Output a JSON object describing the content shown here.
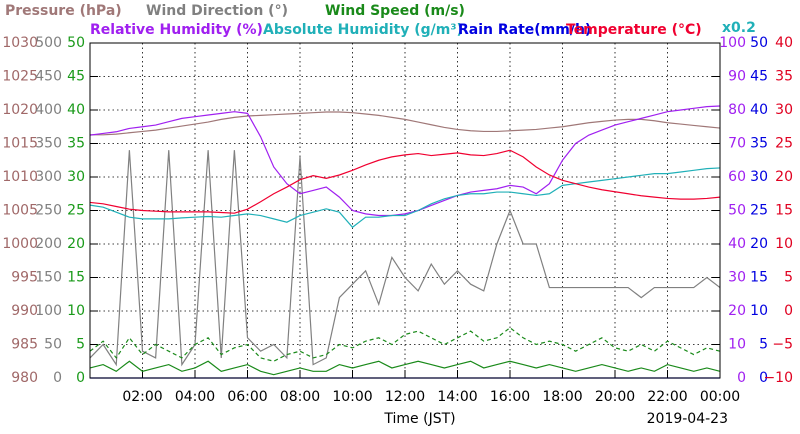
{
  "chart_data": {
    "type": "line",
    "x_label": "Time (JST)",
    "date": "2019-04-23",
    "annotation": "x0.2",
    "xlim": [
      0,
      24
    ],
    "xticks": [
      {
        "value": 2,
        "label": "02:00"
      },
      {
        "value": 4,
        "label": "04:00"
      },
      {
        "value": 6,
        "label": "06:00"
      },
      {
        "value": 8,
        "label": "08:00"
      },
      {
        "value": 10,
        "label": "10:00"
      },
      {
        "value": 12,
        "label": "12:00"
      },
      {
        "value": 14,
        "label": "14:00"
      },
      {
        "value": 16,
        "label": "16:00"
      },
      {
        "value": 18,
        "label": "18:00"
      },
      {
        "value": 20,
        "label": "20:00"
      },
      {
        "value": 22,
        "label": "22:00"
      },
      {
        "value": 24,
        "label": "00:00"
      }
    ],
    "grid": true,
    "y_axes": [
      {
        "side": "left",
        "color": "#a06868",
        "ylim": [
          980,
          1030
        ],
        "yticks": [
          980,
          985,
          990,
          995,
          1000,
          1005,
          1010,
          1015,
          1020,
          1025,
          1030
        ]
      },
      {
        "side": "left",
        "color": "#808080",
        "ylim": [
          0,
          500
        ],
        "yticks": [
          0,
          50,
          100,
          150,
          200,
          250,
          300,
          350,
          400,
          450,
          500
        ]
      },
      {
        "side": "left",
        "color": "#1a9a1a",
        "ylim": [
          0,
          50
        ],
        "yticks": [
          0,
          5,
          10,
          15,
          20,
          25,
          30,
          35,
          40,
          45,
          50
        ]
      },
      {
        "side": "right",
        "color": "#a020f0",
        "ylim": [
          0,
          100
        ],
        "yticks": [
          0,
          10,
          20,
          30,
          40,
          50,
          60,
          70,
          80,
          90,
          100
        ]
      },
      {
        "side": "right",
        "color": "#0000e0",
        "ylim": [
          0,
          50
        ],
        "yticks": [
          0,
          5,
          10,
          15,
          20,
          25,
          30,
          35,
          40,
          45,
          50
        ]
      },
      {
        "side": "right",
        "color": "#e00020",
        "ylim": [
          -10,
          40
        ],
        "yticks": [
          {
            "value": -10,
            "label": "−10"
          },
          {
            "value": -5,
            "label": "−5"
          },
          0,
          5,
          10,
          15,
          20,
          25,
          30,
          35,
          40
        ]
      }
    ],
    "x": [
      0,
      0.5,
      1,
      1.5,
      2,
      2.5,
      3,
      3.5,
      4,
      4.5,
      5,
      5.5,
      6,
      6.5,
      7,
      7.5,
      8,
      8.5,
      9,
      9.5,
      10,
      10.5,
      11,
      11.5,
      12,
      12.5,
      13,
      13.5,
      14,
      14.5,
      15,
      15.5,
      16,
      16.5,
      17,
      17.5,
      18,
      18.5,
      19,
      19.5,
      20,
      20.5,
      21,
      21.5,
      22,
      22.5,
      23,
      23.5,
      24
    ],
    "series": [
      {
        "name": "Pressure (hPa)",
        "color": "#a07878",
        "axis": 0,
        "values": [
          1016.3,
          1016.3,
          1016.4,
          1016.6,
          1016.8,
          1017.0,
          1017.3,
          1017.6,
          1017.9,
          1018.2,
          1018.6,
          1018.9,
          1019.1,
          1019.2,
          1019.3,
          1019.4,
          1019.5,
          1019.6,
          1019.7,
          1019.7,
          1019.6,
          1019.4,
          1019.2,
          1018.9,
          1018.6,
          1018.2,
          1017.8,
          1017.4,
          1017.1,
          1016.9,
          1016.8,
          1016.8,
          1016.9,
          1017.0,
          1017.1,
          1017.3,
          1017.5,
          1017.8,
          1018.1,
          1018.3,
          1018.5,
          1018.6,
          1018.6,
          1018.4,
          1018.1,
          1017.9,
          1017.7,
          1017.5,
          1017.3
        ]
      },
      {
        "name": "Wind Direction (°)",
        "color": "#808080",
        "axis": 1,
        "values": [
          30,
          50,
          20,
          340,
          40,
          30,
          340,
          20,
          50,
          340,
          30,
          340,
          60,
          40,
          50,
          30,
          330,
          20,
          30,
          120,
          140,
          160,
          110,
          180,
          150,
          130,
          170,
          140,
          160,
          140,
          130,
          200,
          250,
          200,
          200,
          135,
          135,
          135,
          135,
          135,
          135,
          135,
          120,
          135,
          135,
          135,
          135,
          150,
          135
        ]
      },
      {
        "name": "Wind Speed (m/s)",
        "color": "#1a8a1a",
        "axis": 2,
        "values": [
          1.5,
          2,
          1,
          2.5,
          1,
          1.5,
          2,
          1,
          1.5,
          2.5,
          1,
          1.5,
          2,
          1,
          0.5,
          1,
          1.5,
          1,
          1,
          2,
          1.5,
          2,
          2.5,
          1.5,
          2,
          2.5,
          2,
          1.5,
          2,
          2.5,
          1.5,
          2,
          2.5,
          2,
          1.5,
          2,
          1.5,
          1,
          1.5,
          2,
          1.5,
          1,
          1.5,
          1,
          2,
          1.5,
          1,
          1.5,
          1
        ]
      },
      {
        "color": "#1a8a1a",
        "axis": 2,
        "dashed": true,
        "values": [
          4,
          5.5,
          3,
          6,
          3.5,
          5,
          4,
          3,
          5,
          6,
          3.5,
          4.5,
          5,
          3,
          2.5,
          3.5,
          4,
          3,
          3.5,
          5,
          4.5,
          5.5,
          6,
          5,
          6.5,
          7,
          6,
          5,
          6,
          7,
          5.5,
          6,
          7.5,
          6,
          5,
          5.5,
          5,
          4,
          5,
          6,
          4.5,
          4,
          5,
          4,
          5.5,
          4.5,
          3.5,
          4.5,
          4
        ]
      },
      {
        "name": "Relative Humidity (%)",
        "color": "#a020f0",
        "axis": 3,
        "values": [
          72.5,
          73,
          73.5,
          74.5,
          75,
          75.5,
          76.5,
          77.5,
          78,
          78.5,
          79,
          79.5,
          79,
          72,
          63,
          58,
          55,
          56,
          57,
          54,
          50,
          49,
          48.5,
          48.5,
          49,
          50,
          51.5,
          53,
          54.5,
          55.5,
          56,
          56.5,
          57.5,
          57,
          55,
          58,
          65,
          70,
          72.5,
          74,
          75.5,
          76.5,
          77.5,
          78.5,
          79.5,
          80,
          80.5,
          81,
          81.2
        ]
      },
      {
        "name": "Absolute Humidity (g/m³)",
        "color": "#20b0b8",
        "axis": 3,
        "values": [
          51.6,
          51,
          49.5,
          48,
          47.5,
          47.5,
          47.5,
          47.8,
          48,
          48.2,
          48,
          48.5,
          49,
          48.5,
          47.5,
          46.5,
          48.5,
          49.5,
          50.5,
          49.5,
          45,
          48,
          48,
          48.5,
          48.5,
          50,
          52,
          53.5,
          54.5,
          55,
          55,
          55.5,
          55.5,
          55,
          54.5,
          55,
          57.5,
          58,
          58.5,
          59,
          59.5,
          60,
          60.5,
          61,
          61,
          61.5,
          62,
          62.5,
          62.7
        ]
      },
      {
        "name": "Rain Rate(mm/h)",
        "color": "#0000e0",
        "axis": 4,
        "values": [
          0,
          0,
          0,
          0,
          0,
          0,
          0,
          0,
          0,
          0,
          0,
          0,
          0,
          0,
          0,
          0,
          0,
          0,
          0,
          0,
          0,
          0,
          0,
          0,
          0,
          0,
          0,
          0,
          0,
          0,
          0,
          0,
          0,
          0,
          0,
          0,
          0,
          0,
          0,
          0,
          0,
          0,
          0,
          0,
          0,
          0,
          0,
          0,
          0
        ]
      },
      {
        "name": "Temperature (°C)",
        "color": "#f00030",
        "axis": 5,
        "values": [
          16.2,
          16,
          15.6,
          15.2,
          15,
          14.9,
          14.8,
          14.8,
          14.8,
          14.8,
          14.7,
          14.6,
          15.2,
          16.3,
          17.5,
          18.5,
          19.6,
          20.2,
          19.8,
          20.3,
          21,
          21.8,
          22.5,
          23,
          23.3,
          23.5,
          23.2,
          23.4,
          23.6,
          23.3,
          23.2,
          23.5,
          24,
          23,
          21.5,
          20.3,
          19.5,
          19,
          18.5,
          18.1,
          17.8,
          17.5,
          17.2,
          17,
          16.8,
          16.7,
          16.7,
          16.8,
          17
        ]
      }
    ]
  }
}
